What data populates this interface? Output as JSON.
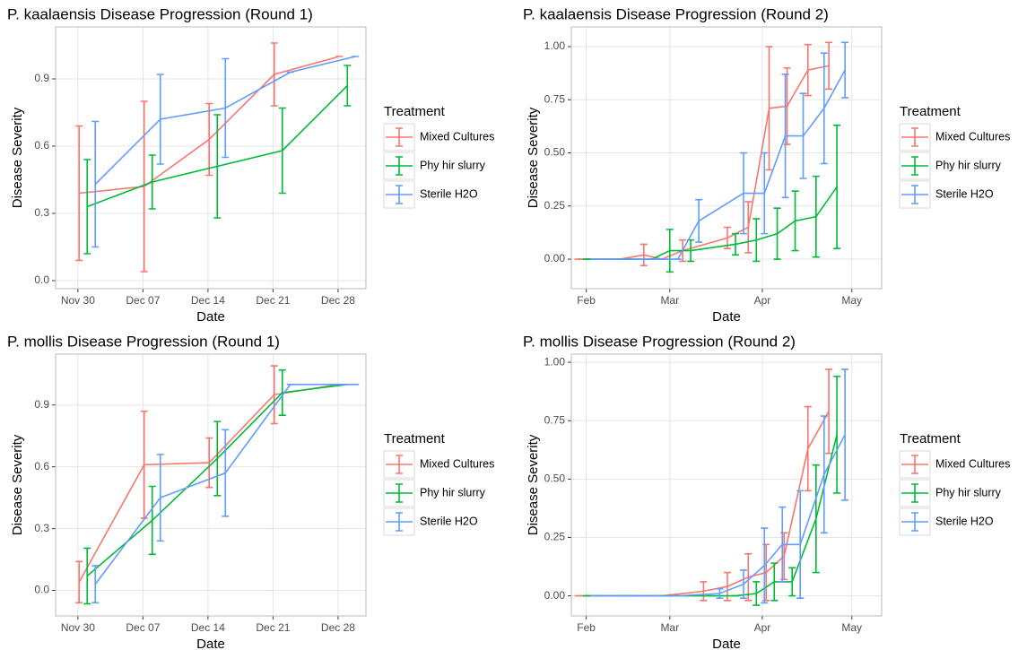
{
  "chart_data": [
    {
      "type": "line",
      "title": "P. kaalaensis Disease Progression (Round 1)",
      "x_label": "Date",
      "y_label": "Disease Severity",
      "legend_title": "Treatment",
      "grid": true,
      "x": [
        1,
        8,
        15,
        22,
        29
      ],
      "xlim": [
        -2.4,
        31
      ],
      "xticks": [
        {
          "value": 0,
          "label": "Nov 30"
        },
        {
          "value": 7,
          "label": "Dec 07"
        },
        {
          "value": 14,
          "label": "Dec 14"
        },
        {
          "value": 21,
          "label": "Dec 21"
        },
        {
          "value": 28,
          "label": "Dec 28"
        }
      ],
      "ylim": [
        -0.036,
        1.132
      ],
      "yticks": [
        {
          "value": 0,
          "label": "0.0"
        },
        0.3,
        0.6,
        0.9
      ],
      "series": [
        {
          "name": "Mixed Cultures",
          "color": "#F8766D",
          "values": [
            0.39,
            0.42,
            0.63,
            0.92,
            1.0
          ],
          "errors": [
            0.3,
            0.38,
            0.16,
            0.14,
            0
          ]
        },
        {
          "name": "Phy hir slurry",
          "color": "#00BA38",
          "values": [
            0.33,
            0.44,
            0.51,
            0.58,
            0.87
          ],
          "errors": [
            0.21,
            0.12,
            0.23,
            0.19,
            0.09
          ]
        },
        {
          "name": "Sterile H2O",
          "color": "#619CFF",
          "values": [
            0.43,
            0.72,
            0.77,
            0.93,
            1.0
          ],
          "errors": [
            0.28,
            0.2,
            0.22,
            0,
            0
          ]
        }
      ]
    },
    {
      "type": "line",
      "title": "P. kaalaensis Disease Progression (Round 2)",
      "x_label": "Date",
      "y_label": "Disease Severity",
      "legend_title": "Treatment",
      "grid": true,
      "x": [
        0,
        14,
        22,
        28,
        35,
        50,
        57,
        64,
        70,
        77,
        84
      ],
      "xlim": [
        -5,
        99
      ],
      "xticks": [
        {
          "value": 0,
          "label": "Feb"
        },
        {
          "value": 28,
          "label": "Mar"
        },
        {
          "value": 59,
          "label": "Apr"
        },
        {
          "value": 89,
          "label": "May"
        }
      ],
      "ylim": [
        -0.139,
        1.093
      ],
      "yticks": [
        {
          "value": 0,
          "label": "0.00"
        },
        0.25,
        {
          "value": 0.5,
          "label": "0.50"
        },
        0.75,
        {
          "value": 1,
          "label": "1.00"
        }
      ],
      "series": [
        {
          "name": "Mixed Cultures",
          "color": "#F8766D",
          "values": [
            0,
            0,
            0.02,
            0,
            0.04,
            0.1,
            0.15,
            0.71,
            0.72,
            0.89,
            0.91
          ],
          "errors": [
            0,
            0,
            0.05,
            0,
            0.05,
            0.05,
            0.12,
            0.29,
            0.18,
            0.12,
            0.11
          ]
        },
        {
          "name": "Phy hir slurry",
          "color": "#00BA38",
          "values": [
            0,
            0,
            0,
            0.04,
            0.04,
            0.07,
            0.09,
            0.12,
            0.18,
            0.2,
            0.34
          ],
          "errors": [
            0,
            0,
            0,
            0.1,
            0.05,
            0.05,
            0.1,
            0.12,
            0.14,
            0.19,
            0.29
          ]
        },
        {
          "name": "Sterile H2O",
          "color": "#619CFF",
          "values": [
            0,
            0,
            0,
            0,
            0.18,
            0.31,
            0.31,
            0.58,
            0.58,
            0.71,
            0.89
          ],
          "errors": [
            0,
            0,
            0,
            0,
            0.1,
            0.19,
            0.19,
            0.29,
            0.2,
            0.26,
            0.13
          ]
        }
      ]
    },
    {
      "type": "line",
      "title": "P. mollis Disease Progression (Round 1)",
      "x_label": "Date",
      "y_label": "Disease Severity",
      "legend_title": "Treatment",
      "grid": true,
      "x": [
        1,
        8,
        15,
        22,
        29
      ],
      "xlim": [
        -2.4,
        31
      ],
      "xticks": [
        {
          "value": 0,
          "label": "Nov 30"
        },
        {
          "value": 7,
          "label": "Dec 07"
        },
        {
          "value": 14,
          "label": "Dec 14"
        },
        {
          "value": 21,
          "label": "Dec 21"
        },
        {
          "value": 28,
          "label": "Dec 28"
        }
      ],
      "ylim": [
        -0.124,
        1.147
      ],
      "yticks": [
        {
          "value": 0,
          "label": "0.0"
        },
        0.3,
        0.6,
        0.9
      ],
      "series": [
        {
          "name": "Mixed Cultures",
          "color": "#F8766D",
          "values": [
            0.04,
            0.61,
            0.62,
            0.95,
            1.0
          ],
          "errors": [
            0.1,
            0.26,
            0.12,
            0.14,
            0
          ]
        },
        {
          "name": "Phy hir slurry",
          "color": "#00BA38",
          "values": [
            0.07,
            0.34,
            0.64,
            0.96,
            1.0
          ],
          "errors": [
            0.135,
            0.165,
            0.18,
            0.11,
            0
          ]
        },
        {
          "name": "Sterile H2O",
          "color": "#619CFF",
          "values": [
            0.03,
            0.45,
            0.57,
            1.0,
            1.0
          ],
          "errors": [
            0.09,
            0.21,
            0.21,
            0,
            0
          ]
        }
      ]
    },
    {
      "type": "line",
      "title": "P. mollis Disease Progression (Round 2)",
      "x_label": "Date",
      "y_label": "Disease Severity",
      "legend_title": "Treatment",
      "grid": true,
      "x": [
        0,
        14,
        28,
        42,
        50,
        57,
        63,
        69,
        77,
        84
      ],
      "xlim": [
        -5,
        99
      ],
      "xticks": [
        {
          "value": 0,
          "label": "Feb"
        },
        {
          "value": 28,
          "label": "Mar"
        },
        {
          "value": 59,
          "label": "Apr"
        },
        {
          "value": 89,
          "label": "May"
        }
      ],
      "ylim": [
        -0.086,
        1.035
      ],
      "yticks": [
        {
          "value": 0,
          "label": "0.00"
        },
        0.25,
        {
          "value": 0.5,
          "label": "0.50"
        },
        0.75,
        {
          "value": 1,
          "label": "1.00"
        }
      ],
      "series": [
        {
          "name": "Mixed Cultures",
          "color": "#F8766D",
          "values": [
            0,
            0,
            0,
            0.02,
            0.04,
            0.08,
            0.1,
            0.17,
            0.63,
            0.79
          ],
          "errors": [
            0,
            0,
            0,
            0.04,
            0.06,
            0.1,
            0.12,
            0.1,
            0.18,
            0.18
          ]
        },
        {
          "name": "Phy hir slurry",
          "color": "#00BA38",
          "values": [
            0,
            0,
            0,
            0,
            0,
            0.01,
            0.06,
            0.06,
            0.33,
            0.69
          ],
          "errors": [
            0,
            0,
            0,
            0,
            0,
            0.05,
            0.08,
            0.06,
            0.23,
            0.25
          ]
        },
        {
          "name": "Sterile H2O",
          "color": "#619CFF",
          "values": [
            0,
            0,
            0,
            0.01,
            0.05,
            0.13,
            0.22,
            0.22,
            0.52,
            0.69
          ],
          "errors": [
            0,
            0,
            0,
            0.02,
            0.06,
            0.16,
            0.16,
            0.23,
            0.25,
            0.28
          ]
        }
      ]
    }
  ]
}
